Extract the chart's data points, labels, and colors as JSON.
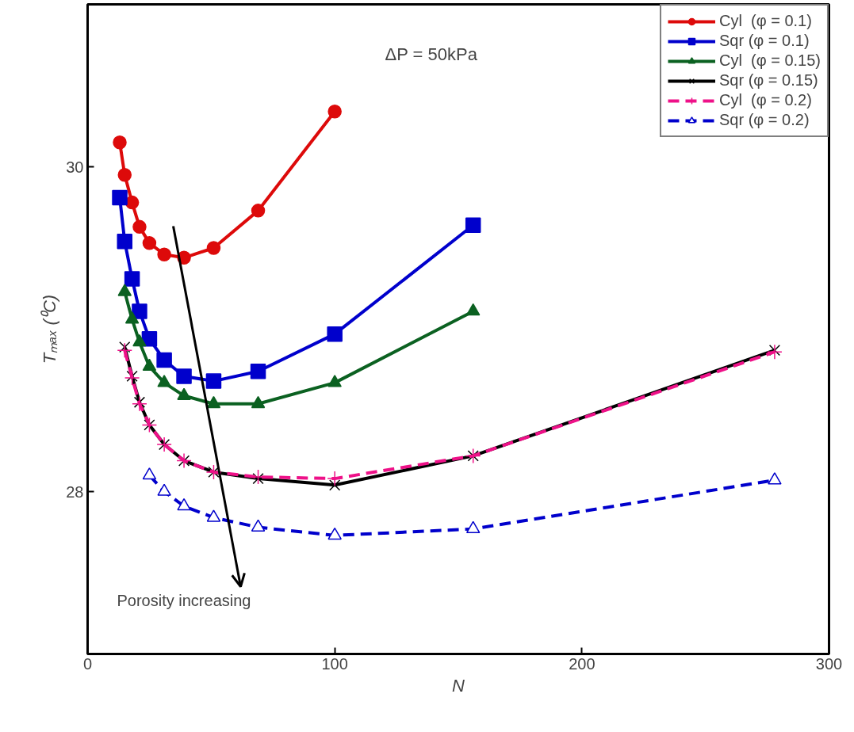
{
  "chart_data": {
    "type": "line",
    "xlabel": "N",
    "ylabel": "Tₘₐₓ (⁰C)",
    "xlim": [
      0,
      300
    ],
    "ylim": [
      27,
      31
    ],
    "xticks": [
      0,
      100,
      200,
      300
    ],
    "yticks": [
      28,
      30
    ],
    "grid": false,
    "legend": "top right",
    "annotations": [
      "ΔP = 50kPa",
      "Porosity increasing"
    ],
    "series": [
      {
        "name": "Cyl  (φ = 0.1)",
        "color": "#dd0a0a",
        "marker": "circle",
        "line_style": "solid",
        "x": [
          13,
          15,
          18,
          21,
          25,
          31,
          39,
          51,
          69,
          100
        ],
        "values": [
          30.15,
          29.95,
          29.78,
          29.63,
          29.53,
          29.46,
          29.44,
          29.5,
          29.73,
          30.34
        ]
      },
      {
        "name": "Sqr (φ = 0.1)",
        "color": "#0000cc",
        "marker": "square",
        "line_style": "solid",
        "x": [
          13,
          15,
          18,
          21,
          25,
          31,
          39,
          51,
          69,
          100,
          156
        ],
        "values": [
          29.81,
          29.54,
          29.31,
          29.11,
          28.94,
          28.81,
          28.71,
          28.68,
          28.74,
          28.97,
          29.64
        ]
      },
      {
        "name": "Cyl  (φ = 0.15)",
        "color": "#0b6121",
        "marker": "triangle",
        "line_style": "solid",
        "x": [
          15,
          18,
          21,
          25,
          31,
          39,
          51,
          69,
          100,
          156
        ],
        "values": [
          29.23,
          29.06,
          28.92,
          28.77,
          28.67,
          28.59,
          28.54,
          28.54,
          28.67,
          29.11
        ]
      },
      {
        "name": "Sqr (φ = 0.15)",
        "color": "#000000",
        "marker": "x",
        "line_style": "solid",
        "x": [
          15,
          18,
          21,
          25,
          31,
          39,
          51,
          69,
          100,
          156,
          278
        ],
        "values": [
          28.89,
          28.71,
          28.55,
          28.41,
          28.29,
          28.19,
          28.12,
          28.08,
          28.04,
          28.22,
          28.87
        ]
      },
      {
        "name": "Cyl  (φ = 0.2)",
        "color": "#ee1188",
        "marker": "cross",
        "line_style": "dashed",
        "x": [
          15,
          18,
          21,
          25,
          31,
          39,
          51,
          69,
          100,
          156,
          278
        ],
        "values": [
          28.87,
          28.7,
          28.54,
          28.41,
          28.29,
          28.19,
          28.12,
          28.09,
          28.08,
          28.22,
          28.86
        ]
      },
      {
        "name": "Sqr (φ = 0.2)",
        "color": "#0000cc",
        "marker": "triangle_open",
        "line_style": "dashed",
        "x": [
          25,
          31,
          39,
          51,
          69,
          100,
          156,
          278
        ],
        "values": [
          28.1,
          28.0,
          27.91,
          27.84,
          27.78,
          27.73,
          27.77,
          28.07
        ]
      }
    ]
  }
}
